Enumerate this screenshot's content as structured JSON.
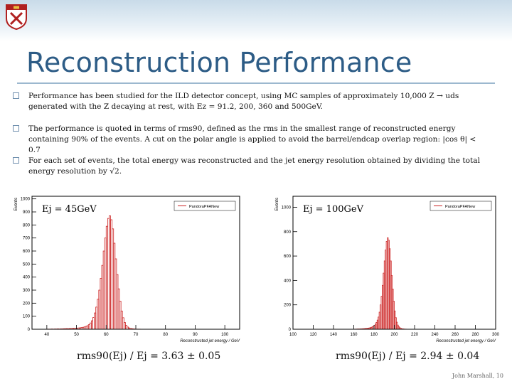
{
  "slide": {
    "title": "Reconstruction Performance",
    "footer": "John Marshall, 10",
    "bullets": [
      "Performance has been studied for the ILD detector concept, using MC samples of approximately 10,000 Z → uds generated with the Z decaying at rest, with Ez = 91.2, 200, 360 and 500GeV.",
      "The performance is quoted in terms of rms90, defined as the rms in the smallest range of reconstructed energy containing 90% of the events. A cut on the polar angle is applied to avoid the barrel/endcap overlap region: |cos θ| < 0.7",
      "For each set of events, the total energy was reconstructed and the jet energy resolution obtained by dividing the total energy resolution by √2."
    ]
  },
  "colors": {
    "title": "#2d5c86",
    "hist": "#cc2222",
    "bullet": "#6f8fae"
  },
  "chart_data": [
    {
      "type": "bar",
      "annotation": "Ej = 45GeV",
      "legend": "PandoraPFANew",
      "xlabel": "Reconstructed jet energy / GeV",
      "ylabel": "Events",
      "xlim": [
        35,
        105
      ],
      "ylim": [
        0,
        1020
      ],
      "xticks": [
        40,
        50,
        60,
        70,
        80,
        90,
        100
      ],
      "yticks": [
        0,
        100,
        200,
        300,
        400,
        500,
        600,
        700,
        800,
        900,
        1000
      ],
      "bin_width": 0.5,
      "bins_start": 38.5,
      "values": [
        0,
        0,
        0,
        1,
        1,
        1,
        2,
        1,
        2,
        2,
        3,
        2,
        3,
        3,
        4,
        4,
        5,
        4,
        6,
        6,
        7,
        7,
        8,
        9,
        10,
        11,
        13,
        15,
        18,
        22,
        27,
        35,
        48,
        65,
        90,
        125,
        170,
        230,
        300,
        390,
        490,
        600,
        700,
        790,
        850,
        870,
        840,
        770,
        660,
        540,
        420,
        310,
        215,
        140,
        88,
        52,
        30,
        17,
        10,
        6,
        4,
        3,
        2,
        1,
        1,
        1,
        0,
        0,
        0,
        0
      ],
      "caption": "rms90(Ej) / Ej = 3.63 ± 0.05"
    },
    {
      "type": "bar",
      "annotation": "Ej = 100GeV",
      "legend": "PandoraPFANew",
      "xlabel": "Reconstructed jet energy / GeV",
      "ylabel": "Events",
      "xlim": [
        100,
        300
      ],
      "ylim": [
        0,
        1090
      ],
      "xticks": [
        100,
        120,
        140,
        160,
        180,
        200,
        220,
        240,
        260,
        280,
        300
      ],
      "yticks": [
        0,
        200,
        400,
        600,
        800,
        1000
      ],
      "bin_width": 1,
      "bins_start": 160,
      "values": [
        1,
        1,
        1,
        2,
        2,
        2,
        3,
        3,
        4,
        4,
        5,
        6,
        7,
        8,
        9,
        11,
        13,
        16,
        20,
        25,
        32,
        42,
        56,
        75,
        100,
        140,
        200,
        270,
        360,
        460,
        560,
        650,
        720,
        750,
        730,
        660,
        560,
        440,
        330,
        230,
        150,
        95,
        58,
        34,
        20,
        12,
        7,
        4,
        3,
        2,
        1,
        1,
        0,
        0,
        0,
        0,
        0,
        0,
        0,
        0
      ],
      "caption": "rms90(Ej) / Ej = 2.94 ± 0.04"
    }
  ]
}
